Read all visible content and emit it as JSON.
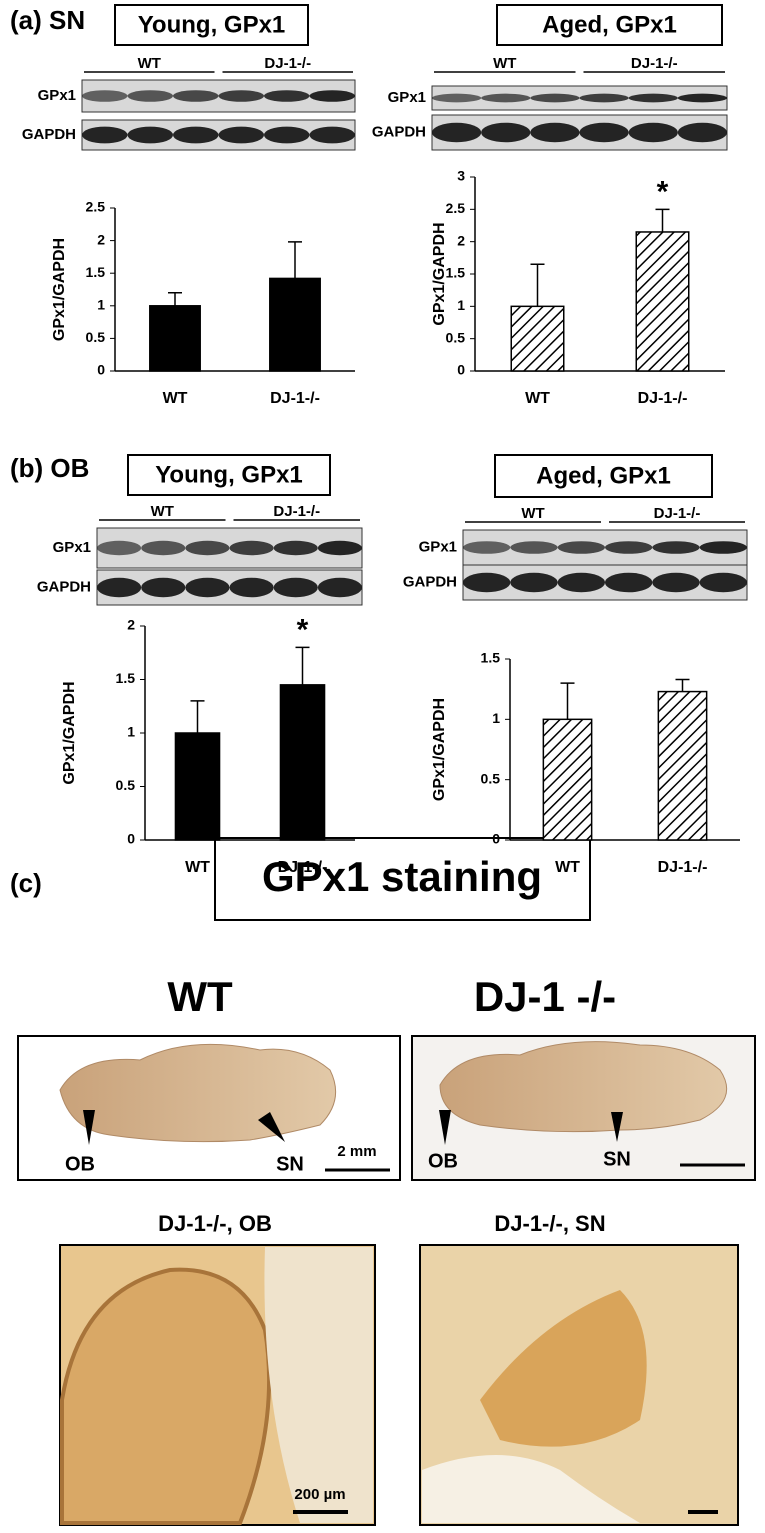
{
  "panels": {
    "a": "(a) SN",
    "b": "(b) OB",
    "c": "(c)"
  },
  "chart_data": [
    {
      "type": "bar",
      "title": "Young, GPx1",
      "ylabel": "GPx1/GAPDH",
      "categories": [
        "WT",
        "DJ-1-/-"
      ],
      "values": [
        1.0,
        1.42
      ],
      "errors": [
        0.2,
        0.56
      ],
      "color": "#000000",
      "fill": "solid",
      "ylim": [
        0,
        2.5
      ],
      "yticks": [
        0,
        0.5,
        1,
        1.5,
        2,
        2.5
      ]
    },
    {
      "type": "bar",
      "title": "Aged, GPx1",
      "ylabel": "GPx1/GAPDH",
      "categories": [
        "WT",
        "DJ-1-/-"
      ],
      "values": [
        1.0,
        2.15
      ],
      "errors": [
        0.65,
        0.35
      ],
      "color": "#000000",
      "fill": "hatched",
      "ylim": [
        0,
        3
      ],
      "yticks": [
        0,
        0.5,
        1,
        1.5,
        2,
        2.5,
        3
      ],
      "annotations": [
        {
          "text": "*",
          "category": "DJ-1-/-"
        }
      ]
    },
    {
      "type": "bar",
      "title": "Young, GPx1",
      "ylabel": "GPx1/GAPDH",
      "categories": [
        "WT",
        "DJ-1-/-"
      ],
      "values": [
        1.0,
        1.45
      ],
      "errors": [
        0.3,
        0.35
      ],
      "color": "#000000",
      "fill": "solid",
      "ylim": [
        0,
        2
      ],
      "yticks": [
        0,
        0.5,
        1,
        1.5,
        2
      ],
      "annotations": [
        {
          "text": "*",
          "category": "DJ-1-/-"
        }
      ]
    },
    {
      "type": "bar",
      "title": "Aged, GPx1",
      "ylabel": "GPx1/GAPDH",
      "categories": [
        "WT",
        "DJ-1-/-"
      ],
      "values": [
        1.0,
        1.23
      ],
      "errors": [
        0.3,
        0.1
      ],
      "color": "#000000",
      "fill": "hatched",
      "ylim": [
        0,
        1.5
      ],
      "yticks": [
        0,
        0.5,
        1,
        1.5
      ]
    }
  ],
  "blots": [
    {
      "groups": [
        "WT",
        "DJ-1-/-"
      ],
      "rows": [
        "GPx1",
        "GAPDH"
      ]
    },
    {
      "groups": [
        "WT",
        "DJ-1-/-"
      ],
      "rows": [
        "GPx1",
        "GAPDH"
      ]
    },
    {
      "groups": [
        "WT",
        "DJ-1-/-"
      ],
      "rows": [
        "GPx1",
        "GAPDH"
      ]
    },
    {
      "groups": [
        "WT",
        "DJ-1-/-"
      ],
      "rows": [
        "GPx1",
        "GAPDH"
      ]
    }
  ],
  "staining": {
    "title": "GPx1 staining",
    "wt": "WT",
    "ko": "DJ-1 -/-",
    "wt_labels": [
      "OB",
      "SN"
    ],
    "ko_labels": [
      "OB",
      "SN"
    ],
    "scale_large": "2 mm",
    "ob_title": "DJ-1-/-, OB",
    "sn_title": "DJ-1-/-, SN",
    "scale_small": "200 µm"
  }
}
